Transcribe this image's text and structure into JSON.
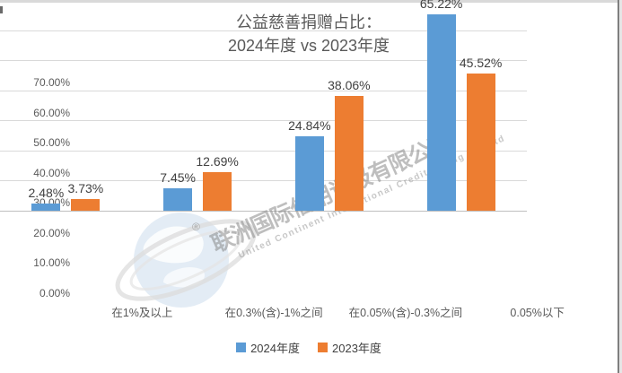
{
  "window": {
    "top_border_color": "#d9d9d9",
    "right_border_color": "#7f7f7f"
  },
  "chart_data": {
    "type": "bar",
    "title_line1": "公益慈善捐赠占比：",
    "title_line2": "2024年度 vs 2023年度",
    "categories": [
      "在1%及以上",
      "在0.3%(含)-1%之间",
      "在0.05%(含)-0.3%之间",
      "0.05%以下"
    ],
    "series": [
      {
        "name": "2024年度",
        "color": "#5B9BD5",
        "values": [
          2.48,
          7.45,
          24.84,
          65.22
        ]
      },
      {
        "name": "2023年度",
        "color": "#ED7D31",
        "values": [
          3.73,
          12.69,
          38.06,
          45.52
        ]
      }
    ],
    "data_labels": [
      [
        "2.48%",
        "7.45%",
        "24.84%",
        "65.22%"
      ],
      [
        "3.73%",
        "12.69%",
        "38.06%",
        "45.52%"
      ]
    ],
    "y_axis": {
      "min": 0,
      "max": 70,
      "step": 10,
      "tick_labels": [
        "0.00%",
        "10.00%",
        "20.00%",
        "30.00%",
        "40.00%",
        "50.00%",
        "60.00%",
        "70.00%"
      ]
    },
    "grid": true,
    "legend_position": "bottom"
  },
  "legend": {
    "items": [
      {
        "label": "2024年度",
        "color": "#5B9BD5"
      },
      {
        "label": "2023年度",
        "color": "#ED7D31"
      }
    ]
  },
  "watermark": {
    "registered": "®",
    "text_cn": "联洲国际信用评级有限公司",
    "text_en": "United Continent International Credit Rating Co.,Ltd"
  },
  "colors": {
    "gridline": "#d9d9d9",
    "axis_line": "#bfbfbf",
    "axis_text": "#595959",
    "data_label_text": "#404040"
  }
}
